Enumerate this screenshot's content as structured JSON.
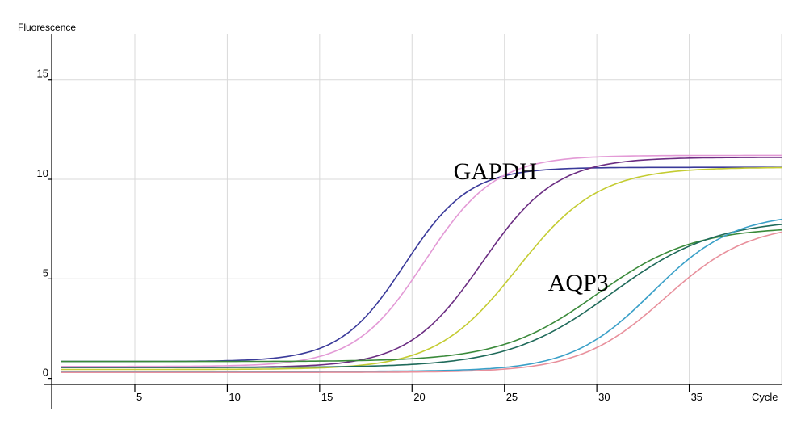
{
  "chart_data": {
    "type": "line",
    "ylabel": "Fluorescence",
    "xlabel": "Cycle",
    "xlim": [
      0.5,
      40
    ],
    "ylim": [
      -0.3,
      17.3
    ],
    "xticks": [
      5,
      10,
      15,
      20,
      25,
      30,
      35
    ],
    "yticks": [
      0,
      5,
      10,
      15
    ],
    "xtick_labels": [
      "5",
      "10",
      "15",
      "20",
      "25",
      "30",
      "35"
    ],
    "ytick_labels": [
      "0",
      "5",
      "10",
      "15"
    ],
    "grid": true,
    "annotations": [
      {
        "text": "GAPDH",
        "x": 24.5,
        "y": 10
      },
      {
        "text": "AQP3",
        "x": 29,
        "y": 4.4
      }
    ],
    "series": [
      {
        "group": "GAPDH",
        "color": "#3a3a9a",
        "baseline": 0.85,
        "plateau": 10.6,
        "mid": 19.6,
        "slope": 1.75
      },
      {
        "group": "GAPDH",
        "color": "#e39ad6",
        "baseline": 0.6,
        "plateau": 11.2,
        "mid": 20.7,
        "slope": 1.9
      },
      {
        "group": "GAPDH",
        "color": "#6b2d82",
        "baseline": 0.55,
        "plateau": 11.1,
        "mid": 23.8,
        "slope": 2.0
      },
      {
        "group": "GAPDH",
        "color": "#c4cc32",
        "baseline": 0.45,
        "plateau": 10.6,
        "mid": 25.7,
        "slope": 2.2
      },
      {
        "group": "AQP3",
        "color": "#3a8a3a",
        "baseline": 0.85,
        "plateau": 7.6,
        "mid": 30.0,
        "slope": 2.6
      },
      {
        "group": "AQP3",
        "color": "#1f6a5a",
        "baseline": 0.55,
        "plateau": 8.0,
        "mid": 30.8,
        "slope": 2.8
      },
      {
        "group": "AQP3",
        "color": "#3aa0c8",
        "baseline": 0.35,
        "plateau": 8.3,
        "mid": 33.0,
        "slope": 2.2
      },
      {
        "group": "AQP3",
        "color": "#e8909c",
        "baseline": 0.3,
        "plateau": 7.8,
        "mid": 33.7,
        "slope": 2.3
      }
    ]
  }
}
